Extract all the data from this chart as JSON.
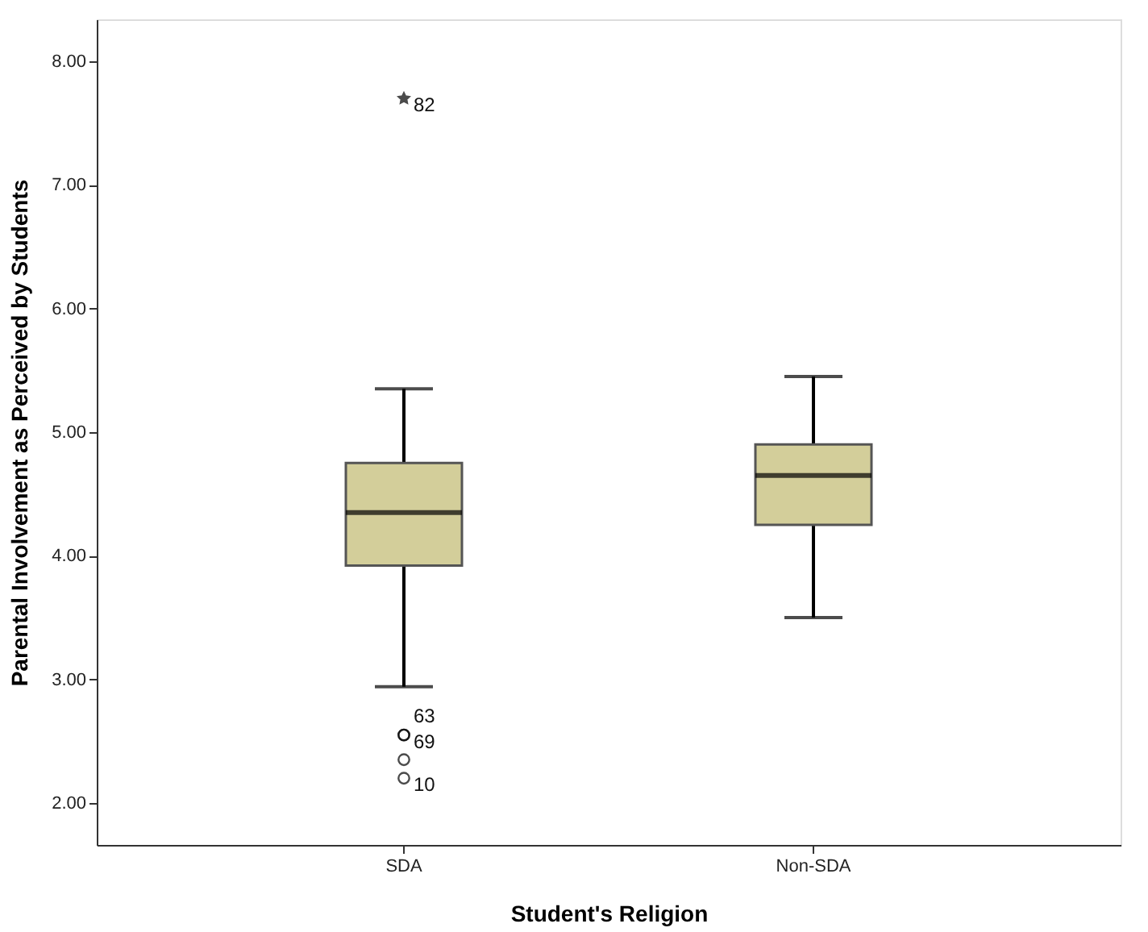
{
  "chart_data": {
    "type": "box",
    "xlabel": "Student's Religion",
    "ylabel": "Parental Involvement as Perceived by Students",
    "categories": [
      "SDA",
      "Non-SDA"
    ],
    "boxes": [
      {
        "low": 2.94,
        "q1": 3.92,
        "median": 4.35,
        "q3": 4.75,
        "high": 5.35,
        "outliers": [
          7.7,
          2.55,
          2.55,
          2.2,
          2.35
        ]
      },
      {
        "low": 3.5,
        "q1": 4.25,
        "median": 4.65,
        "q3": 4.9,
        "high": 5.45
      }
    ],
    "color": "#d3ce9a",
    "ylim": [
      1.66,
      8.34
    ],
    "yticks": [
      {
        "value": 2,
        "label": "2.00"
      },
      {
        "value": 3,
        "label": "3.00"
      },
      {
        "value": 4,
        "label": "4.00"
      },
      {
        "value": 5,
        "label": "5.00"
      },
      {
        "value": 6,
        "label": "6.00"
      },
      {
        "value": 7,
        "label": "7.00"
      },
      {
        "value": 8,
        "label": "8.00"
      }
    ],
    "annotations": [
      "82",
      "63",
      "69",
      "10"
    ],
    "grid": false
  }
}
